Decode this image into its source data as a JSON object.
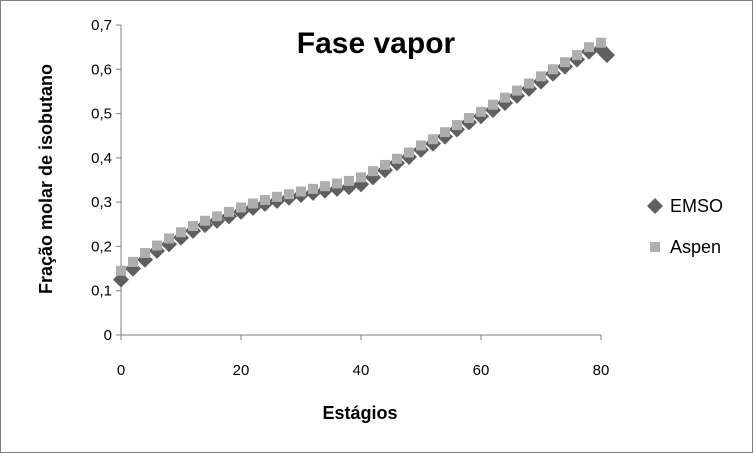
{
  "chart_data": {
    "type": "scatter",
    "title": "Fase vapor",
    "xlabel": "Estágios",
    "ylabel": "Fração molar de isobutano",
    "xlim": [
      0,
      80
    ],
    "ylim": [
      0,
      0.7
    ],
    "xticks": [
      "0",
      "20",
      "40",
      "60",
      "80"
    ],
    "yticks": [
      "0",
      "0,1",
      "0,2",
      "0,3",
      "0,4",
      "0,5",
      "0,6",
      "0,7"
    ],
    "grid": false,
    "legend_position": "right",
    "series": [
      {
        "name": "EMSO",
        "marker": "diamond",
        "color": "#5f5f5f",
        "x": [
          0,
          2,
          4,
          6,
          8,
          10,
          12,
          14,
          16,
          18,
          20,
          22,
          24,
          26,
          28,
          30,
          32,
          34,
          36,
          38,
          40,
          42,
          44,
          46,
          48,
          50,
          52,
          54,
          56,
          58,
          60,
          62,
          64,
          66,
          68,
          70,
          72,
          74,
          76,
          78,
          80,
          81
        ],
        "y": [
          0.125,
          0.15,
          0.17,
          0.19,
          0.205,
          0.22,
          0.235,
          0.248,
          0.258,
          0.268,
          0.278,
          0.287,
          0.296,
          0.303,
          0.31,
          0.316,
          0.321,
          0.326,
          0.33,
          0.334,
          0.34,
          0.356,
          0.372,
          0.388,
          0.402,
          0.418,
          0.432,
          0.448,
          0.464,
          0.48,
          0.494,
          0.508,
          0.524,
          0.54,
          0.556,
          0.572,
          0.59,
          0.606,
          0.622,
          0.64,
          0.646,
          0.632
        ]
      },
      {
        "name": "Aspen",
        "marker": "square",
        "color": "#aeaeae",
        "x": [
          0,
          2,
          4,
          6,
          8,
          10,
          12,
          14,
          16,
          18,
          20,
          22,
          24,
          26,
          28,
          30,
          32,
          34,
          36,
          38,
          40,
          42,
          44,
          46,
          48,
          50,
          52,
          54,
          56,
          58,
          60,
          62,
          64,
          66,
          68,
          70,
          72,
          74,
          76,
          78,
          80
        ],
        "y": [
          0.145,
          0.165,
          0.185,
          0.202,
          0.218,
          0.232,
          0.246,
          0.258,
          0.268,
          0.278,
          0.288,
          0.297,
          0.305,
          0.312,
          0.318,
          0.324,
          0.33,
          0.336,
          0.342,
          0.348,
          0.356,
          0.37,
          0.384,
          0.398,
          0.412,
          0.428,
          0.442,
          0.458,
          0.474,
          0.49,
          0.504,
          0.52,
          0.536,
          0.552,
          0.568,
          0.584,
          0.6,
          0.616,
          0.632,
          0.65,
          0.66
        ]
      }
    ]
  }
}
